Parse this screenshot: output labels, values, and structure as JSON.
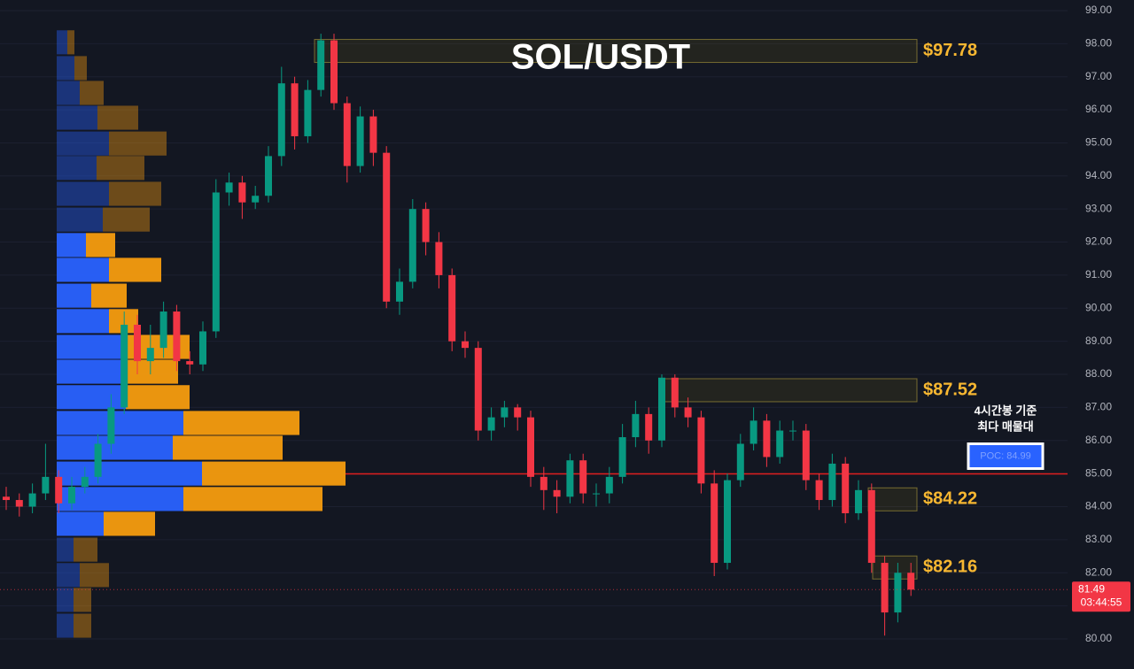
{
  "chart_data": {
    "type": "candlestick",
    "title": "SOL/USDT",
    "ylim": [
      79.09,
      99.32
    ],
    "yticks": [
      {
        "value": 80,
        "label": "80.00"
      },
      {
        "value": 81,
        "label": "81.00"
      },
      {
        "value": 82,
        "label": "82.00"
      },
      {
        "value": 83,
        "label": "83.00"
      },
      {
        "value": 84,
        "label": "84.00"
      },
      {
        "value": 85,
        "label": "85.00"
      },
      {
        "value": 86,
        "label": "86.00"
      },
      {
        "value": 87,
        "label": "87.00"
      },
      {
        "value": 88,
        "label": "88.00"
      },
      {
        "value": 89,
        "label": "89.00"
      },
      {
        "value": 90,
        "label": "90.00"
      },
      {
        "value": 91,
        "label": "91.00"
      },
      {
        "value": 92,
        "label": "92.00"
      },
      {
        "value": 93,
        "label": "93.00"
      },
      {
        "value": 94,
        "label": "94.00"
      },
      {
        "value": 95,
        "label": "95.00"
      },
      {
        "value": 96,
        "label": "96.00"
      },
      {
        "value": 97,
        "label": "97.00"
      },
      {
        "value": 98,
        "label": "98.00"
      },
      {
        "value": 99,
        "label": "99.00"
      }
    ],
    "up_color": "#089981",
    "down_color": "#f23645",
    "candles": {
      "open": [
        84.3,
        84.2,
        84.0,
        84.4,
        84.9,
        84.1,
        84.6,
        84.9,
        85.9,
        87.0,
        89.5,
        88.4,
        88.8,
        89.9,
        88.4,
        88.3,
        89.3,
        93.5,
        93.8,
        93.2,
        93.4,
        94.6,
        96.8,
        95.2,
        96.6,
        98.1,
        96.2,
        94.3,
        95.8,
        94.7,
        90.2,
        90.8,
        93.0,
        92.0,
        91.0,
        89.0,
        88.8,
        86.3,
        86.7,
        87.0,
        86.7,
        84.9,
        84.5,
        84.3,
        85.4,
        84.4,
        84.4,
        84.9,
        86.1,
        86.8,
        86.0,
        87.9,
        87.0,
        86.7,
        84.7,
        82.3,
        84.8,
        85.9,
        86.6,
        85.5,
        86.3,
        86.3,
        84.8,
        84.2,
        85.3,
        83.8,
        84.5,
        82.3,
        80.8,
        82.0
      ],
      "high": [
        84.6,
        84.4,
        84.7,
        85.9,
        85.1,
        84.9,
        85.2,
        86.2,
        87.4,
        89.9,
        89.8,
        89.5,
        90.2,
        90.1,
        88.7,
        89.6,
        93.9,
        94.1,
        94.0,
        93.7,
        94.9,
        97.3,
        97.0,
        96.9,
        98.3,
        98.3,
        96.4,
        96.1,
        96.0,
        94.9,
        91.2,
        93.3,
        93.2,
        92.3,
        91.2,
        89.3,
        89.0,
        87.0,
        87.2,
        87.1,
        86.9,
        85.2,
        84.8,
        85.6,
        85.6,
        84.7,
        85.2,
        86.5,
        87.2,
        87.0,
        88.0,
        88.0,
        87.3,
        86.9,
        85.1,
        85.0,
        86.2,
        87.0,
        86.8,
        86.6,
        86.6,
        86.5,
        85.0,
        85.6,
        85.5,
        84.8,
        84.7,
        82.5,
        82.3,
        82.3
      ],
      "low": [
        83.9,
        83.7,
        83.8,
        84.2,
        83.8,
        83.9,
        84.4,
        84.7,
        85.6,
        86.8,
        88.0,
        88.0,
        88.5,
        88.1,
        88.0,
        88.1,
        89.1,
        93.1,
        92.7,
        93.0,
        93.2,
        94.3,
        94.8,
        95.0,
        96.4,
        96.0,
        93.8,
        94.1,
        94.3,
        90.0,
        89.8,
        90.6,
        91.6,
        90.6,
        88.7,
        88.5,
        86.0,
        86.0,
        86.4,
        86.3,
        84.6,
        83.9,
        83.8,
        84.1,
        84.1,
        84.0,
        84.1,
        84.7,
        85.8,
        85.6,
        85.8,
        86.7,
        86.4,
        84.4,
        81.9,
        82.1,
        84.6,
        85.7,
        85.2,
        85.3,
        86.0,
        84.5,
        83.9,
        84.0,
        83.5,
        83.6,
        82.0,
        80.1,
        80.5,
        81.3
      ],
      "close": [
        84.2,
        84.0,
        84.4,
        84.9,
        84.1,
        84.6,
        84.9,
        85.9,
        87.0,
        89.5,
        88.4,
        88.8,
        89.9,
        88.4,
        88.3,
        89.3,
        93.5,
        93.8,
        93.2,
        93.4,
        94.6,
        96.8,
        95.2,
        96.6,
        98.1,
        96.2,
        94.3,
        95.8,
        94.7,
        90.2,
        90.8,
        93.0,
        92.0,
        91.0,
        89.0,
        88.8,
        86.3,
        86.7,
        87.0,
        86.7,
        84.9,
        84.5,
        84.3,
        85.4,
        84.4,
        84.4,
        84.9,
        86.1,
        86.8,
        86.0,
        87.9,
        87.0,
        86.7,
        84.7,
        82.3,
        84.8,
        85.9,
        86.6,
        85.5,
        86.3,
        86.3,
        84.8,
        84.2,
        85.3,
        83.8,
        84.5,
        82.3,
        80.8,
        82.0,
        81.49
      ]
    },
    "countdown": "03:44:55",
    "volume_profile": {
      "levels": [
        98.04,
        97.26,
        96.51,
        95.76,
        94.98,
        94.24,
        93.46,
        92.68,
        91.91,
        91.16,
        90.38,
        89.61,
        88.83,
        88.08,
        87.31,
        86.53,
        85.78,
        85.0,
        84.23,
        83.48,
        82.7,
        81.93,
        81.18,
        80.4
      ],
      "buy": [
        12,
        20,
        26,
        46,
        59,
        45,
        59,
        52,
        33,
        59,
        39,
        59,
        73,
        73,
        78,
        143,
        131,
        164,
        143,
        53,
        19,
        26,
        19,
        19
      ],
      "sell": [
        8,
        14,
        27,
        46,
        65,
        54,
        59,
        53,
        33,
        59,
        40,
        33,
        77,
        64,
        72,
        131,
        124,
        162,
        157,
        58,
        27,
        33,
        20,
        20
      ],
      "buy_color": "#2962ff",
      "sell_color": "#f59c0f",
      "value_area": {
        "low": 83.1,
        "high": 92.3
      }
    },
    "levels": [
      {
        "value": 97.78,
        "label": "$97.78"
      },
      {
        "value": 87.52,
        "label": "$87.52"
      },
      {
        "value": 84.22,
        "label": "$84.22"
      },
      {
        "value": 82.16,
        "label": "$82.16"
      }
    ],
    "poc": {
      "value": 84.99,
      "label": "POC: 84.99",
      "note": [
        "4시간봉 기준",
        "최다 매물대"
      ]
    }
  }
}
